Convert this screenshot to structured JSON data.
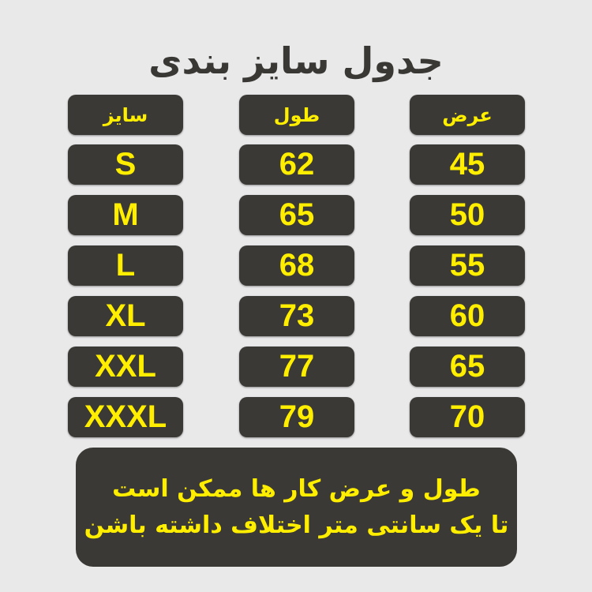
{
  "title": "جدول سایز بندی",
  "headers": {
    "size": "سایز",
    "length": "طول",
    "width": "عرض"
  },
  "rows": [
    {
      "size": "S",
      "length": "62",
      "width": "45"
    },
    {
      "size": "M",
      "length": "65",
      "width": "50"
    },
    {
      "size": "L",
      "length": "68",
      "width": "55"
    },
    {
      "size": "XL",
      "length": "73",
      "width": "60"
    },
    {
      "size": "XXL",
      "length": "77",
      "width": "65"
    },
    {
      "size": "XXXL",
      "length": "79",
      "width": "70"
    }
  ],
  "note": {
    "line1": "طول و عرض کار ها ممکن است",
    "line2": "تا یک سانتی متر اختلاف داشته باشن"
  },
  "colors": {
    "background": "#e9e9ea",
    "box": "#3b3935",
    "text": "#ffee00"
  }
}
